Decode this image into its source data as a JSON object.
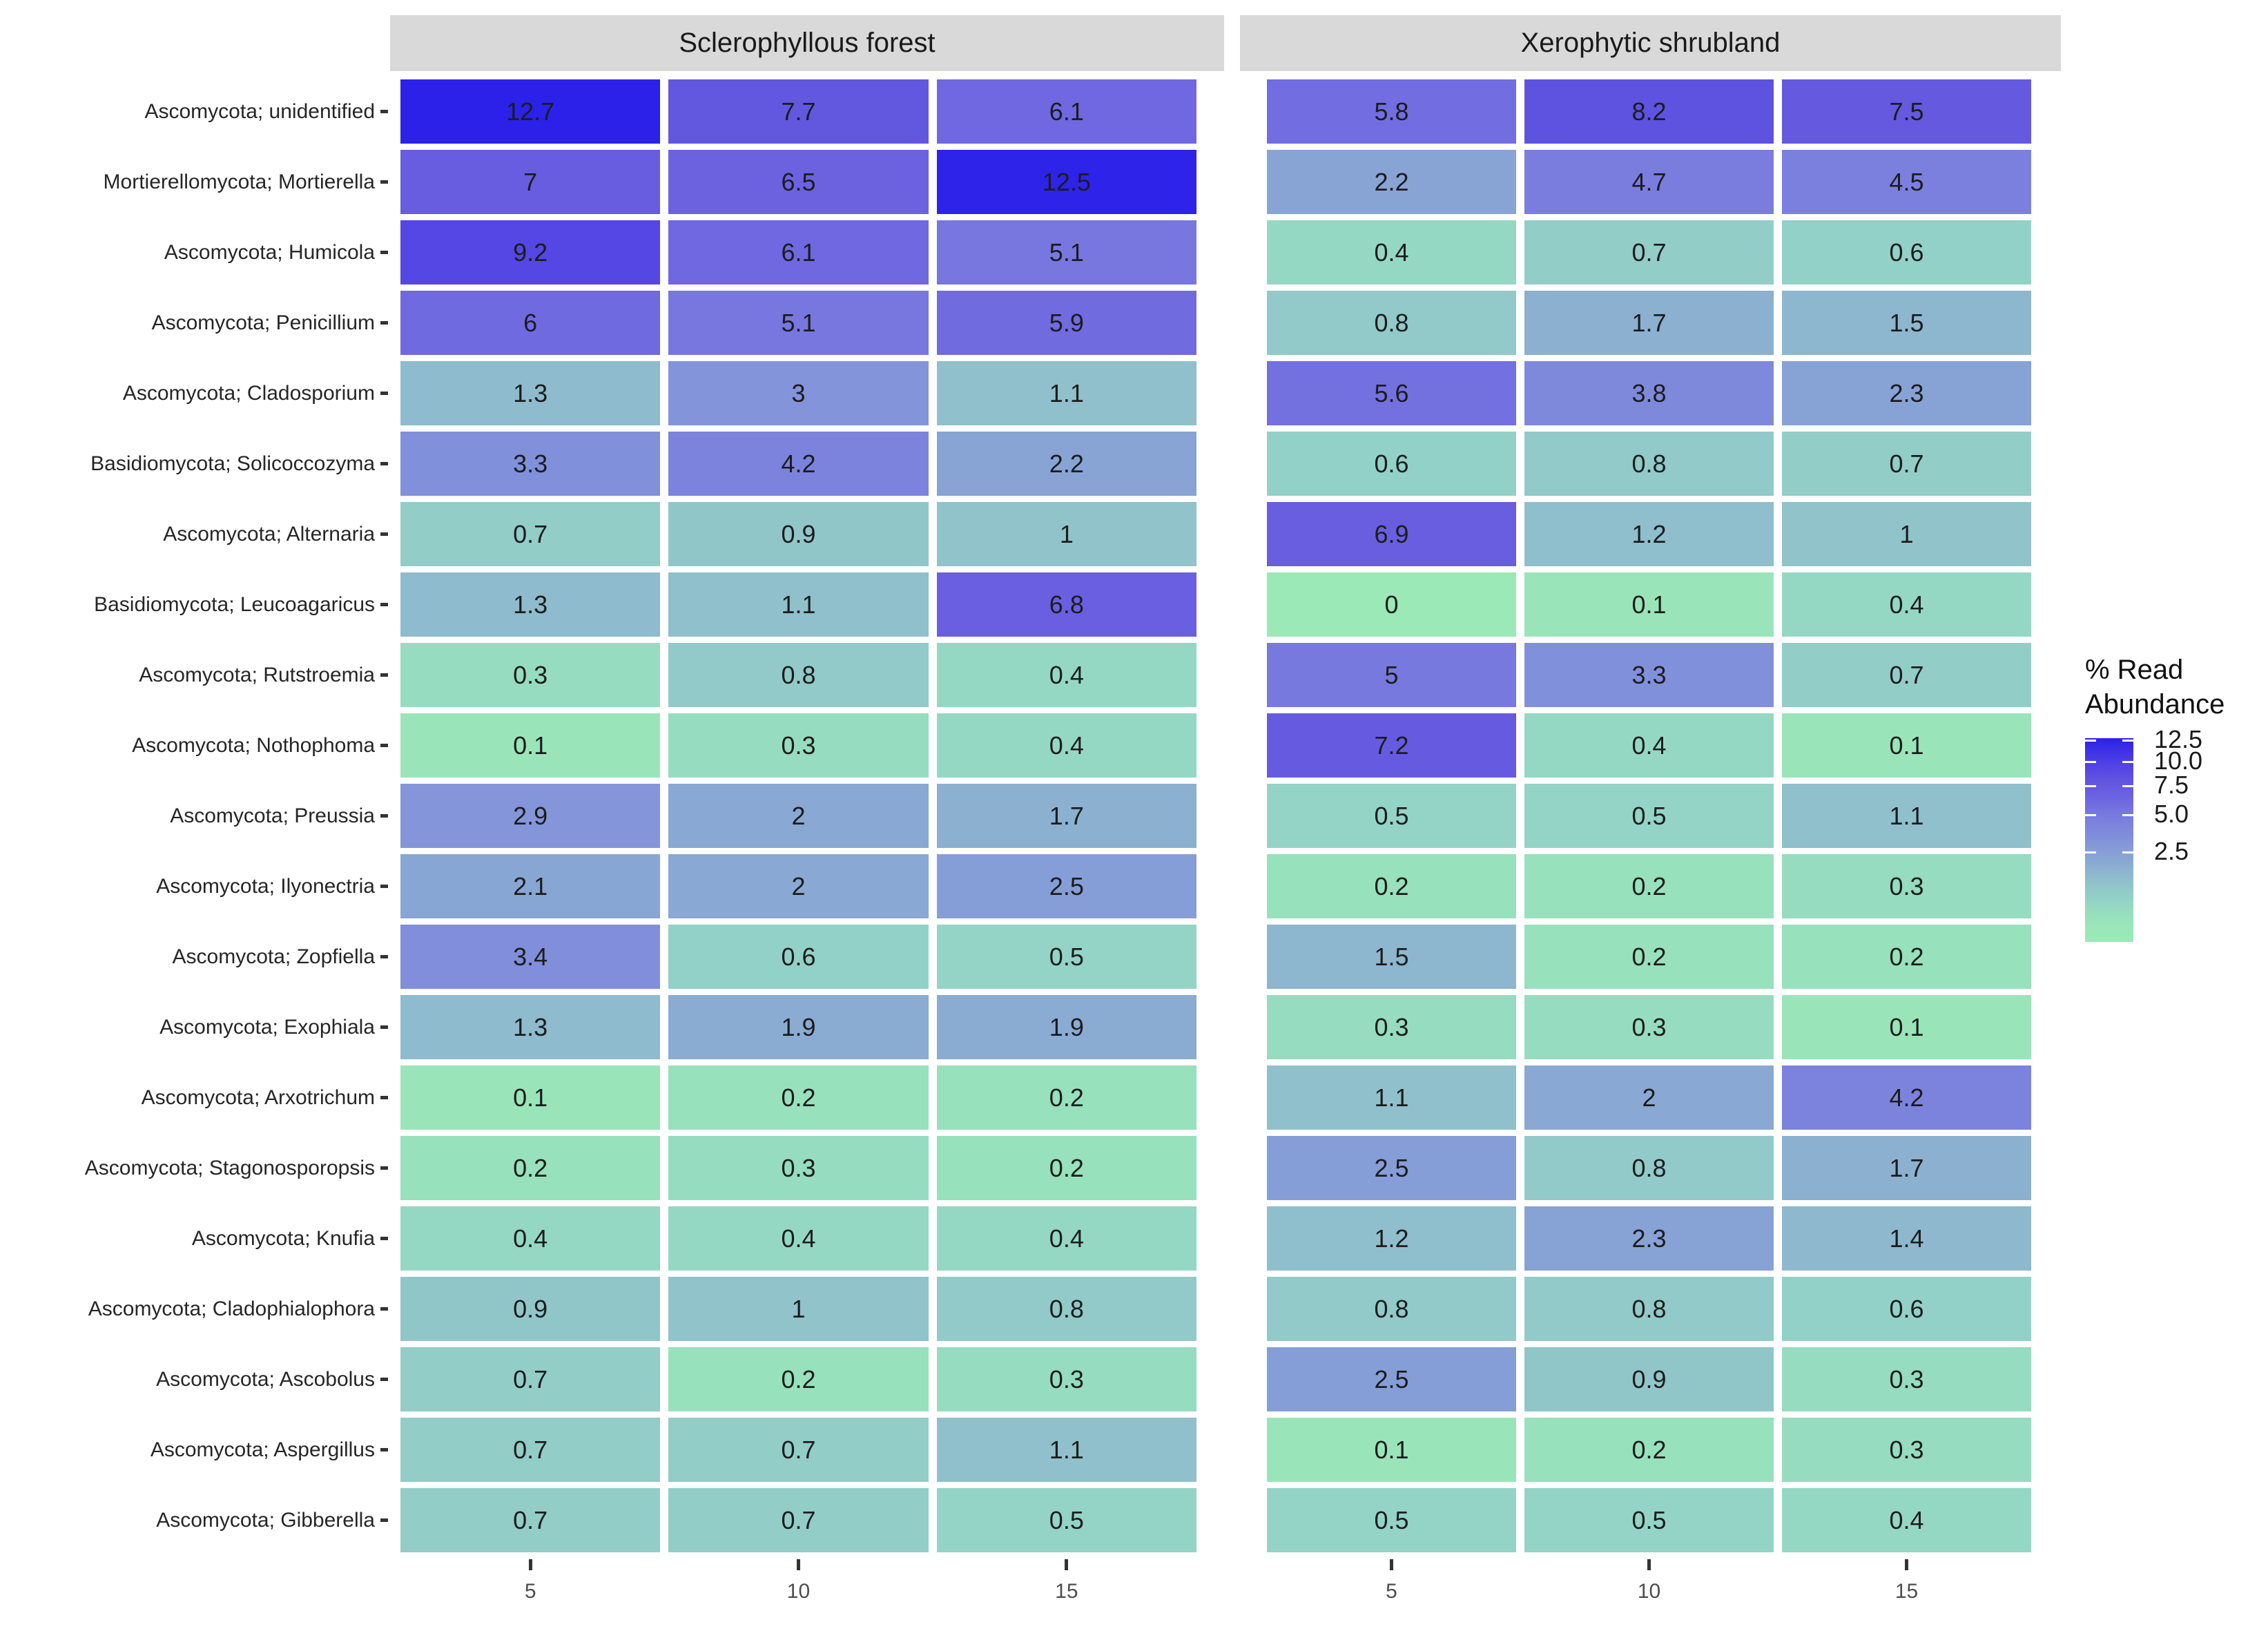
{
  "chart_data": {
    "type": "heatmap",
    "facets": [
      {
        "label": "Sclerophyllous forest",
        "x": [
          5,
          10,
          15
        ]
      },
      {
        "label": "Xerophytic shrubland",
        "x": [
          5,
          10,
          15
        ]
      }
    ],
    "rows": [
      {
        "taxon": "Ascomycota; unidentified",
        "values": [
          [
            12.7,
            7.7,
            6.1
          ],
          [
            5.8,
            8.2,
            7.5
          ]
        ]
      },
      {
        "taxon": "Mortierellomycota; Mortierella",
        "values": [
          [
            7,
            6.5,
            12.5
          ],
          [
            2.2,
            4.7,
            4.5
          ]
        ]
      },
      {
        "taxon": "Ascomycota; Humicola",
        "values": [
          [
            9.2,
            6.1,
            5.1
          ],
          [
            0.4,
            0.7,
            0.6
          ]
        ]
      },
      {
        "taxon": "Ascomycota; Penicillium",
        "values": [
          [
            6,
            5.1,
            5.9
          ],
          [
            0.8,
            1.7,
            1.5
          ]
        ]
      },
      {
        "taxon": "Ascomycota; Cladosporium",
        "values": [
          [
            1.3,
            3,
            1.1
          ],
          [
            5.6,
            3.8,
            2.3
          ]
        ]
      },
      {
        "taxon": "Basidiomycota; Solicoccozyma",
        "values": [
          [
            3.3,
            4.2,
            2.2
          ],
          [
            0.6,
            0.8,
            0.7
          ]
        ]
      },
      {
        "taxon": "Ascomycota; Alternaria",
        "values": [
          [
            0.7,
            0.9,
            1
          ],
          [
            6.9,
            1.2,
            1
          ]
        ]
      },
      {
        "taxon": "Basidiomycota; Leucoagaricus",
        "values": [
          [
            1.3,
            1.1,
            6.8
          ],
          [
            0,
            0.1,
            0.4
          ]
        ]
      },
      {
        "taxon": "Ascomycota; Rutstroemia",
        "values": [
          [
            0.3,
            0.8,
            0.4
          ],
          [
            5,
            3.3,
            0.7
          ]
        ]
      },
      {
        "taxon": "Ascomycota; Nothophoma",
        "values": [
          [
            0.1,
            0.3,
            0.4
          ],
          [
            7.2,
            0.4,
            0.1
          ]
        ]
      },
      {
        "taxon": "Ascomycota; Preussia",
        "values": [
          [
            2.9,
            2,
            1.7
          ],
          [
            0.5,
            0.5,
            1.1
          ]
        ]
      },
      {
        "taxon": "Ascomycota; Ilyonectria",
        "values": [
          [
            2.1,
            2,
            2.5
          ],
          [
            0.2,
            0.2,
            0.3
          ]
        ]
      },
      {
        "taxon": "Ascomycota; Zopfiella",
        "values": [
          [
            3.4,
            0.6,
            0.5
          ],
          [
            1.5,
            0.2,
            0.2
          ]
        ]
      },
      {
        "taxon": "Ascomycota; Exophiala",
        "values": [
          [
            1.3,
            1.9,
            1.9
          ],
          [
            0.3,
            0.3,
            0.1
          ]
        ]
      },
      {
        "taxon": "Ascomycota; Arxotrichum",
        "values": [
          [
            0.1,
            0.2,
            0.2
          ],
          [
            1.1,
            2,
            4.2
          ]
        ]
      },
      {
        "taxon": "Ascomycota; Stagonosporopsis",
        "values": [
          [
            0.2,
            0.3,
            0.2
          ],
          [
            2.5,
            0.8,
            1.7
          ]
        ]
      },
      {
        "taxon": "Ascomycota; Knufia",
        "values": [
          [
            0.4,
            0.4,
            0.4
          ],
          [
            1.2,
            2.3,
            1.4
          ]
        ]
      },
      {
        "taxon": "Ascomycota; Cladophialophora",
        "values": [
          [
            0.9,
            1,
            0.8
          ],
          [
            0.8,
            0.8,
            0.6
          ]
        ]
      },
      {
        "taxon": "Ascomycota; Ascobolus",
        "values": [
          [
            0.7,
            0.2,
            0.3
          ],
          [
            2.5,
            0.9,
            0.3
          ]
        ]
      },
      {
        "taxon": "Ascomycota; Aspergillus",
        "values": [
          [
            0.7,
            0.7,
            1.1
          ],
          [
            0.1,
            0.2,
            0.3
          ]
        ]
      },
      {
        "taxon": "Ascomycota; Gibberella",
        "values": [
          [
            0.7,
            0.7,
            0.5
          ],
          [
            0.5,
            0.5,
            0.4
          ]
        ]
      }
    ],
    "legend": {
      "title_line1": "% Read",
      "title_line2": "Abundance",
      "ticks": [
        {
          "label": "12.5",
          "value": 12.5
        },
        {
          "label": "10.0",
          "value": 10
        },
        {
          "label": "7.5",
          "value": 7.5
        },
        {
          "label": "5.0",
          "value": 5
        },
        {
          "label": "2.5",
          "value": 2.5
        }
      ],
      "scale_min": 0,
      "scale_max": 12.7,
      "transform": "sqrt"
    },
    "color_scale": {
      "low": "#9AE9B6",
      "high": "#2B21E9",
      "anchors": [
        [
          0,
          "#9AE9B6"
        ],
        [
          0.5,
          "#93D4C6"
        ],
        [
          1,
          "#90C3CA"
        ],
        [
          2,
          "#89A8D3"
        ],
        [
          3,
          "#8394DA"
        ],
        [
          4,
          "#7D86DC"
        ],
        [
          5,
          "#7879DF"
        ],
        [
          6.5,
          "#6C62E0"
        ],
        [
          8,
          "#6054DF"
        ],
        [
          9.5,
          "#5244E4"
        ],
        [
          11,
          "#3F33E6"
        ],
        [
          12.7,
          "#2B21E9"
        ]
      ]
    },
    "style": {
      "strip_bg": "#D9D9D9",
      "background": "#FFFFFF",
      "cell_text": "#1C1C1C",
      "axis_text": "#4D4D4D"
    }
  }
}
